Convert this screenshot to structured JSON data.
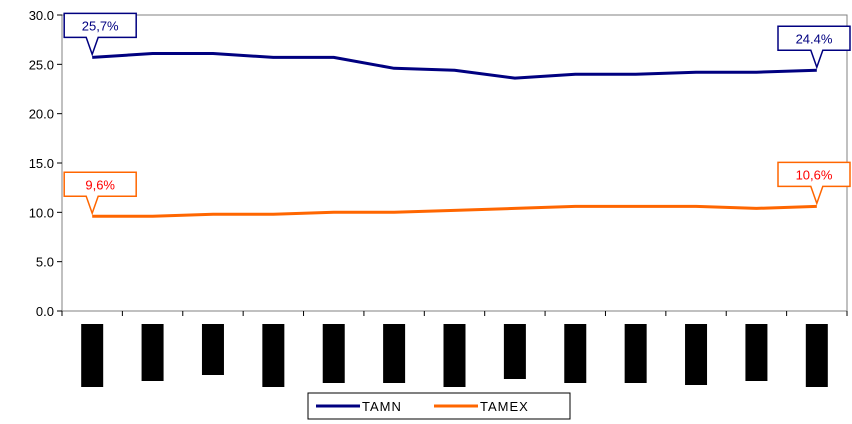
{
  "chart_data": {
    "type": "line",
    "title": "",
    "xlabel": "",
    "ylabel": "",
    "ylim": [
      0,
      30
    ],
    "yticks": [
      "0.0",
      "5.0",
      "10.0",
      "15.0",
      "20.0",
      "25.0",
      "30.0"
    ],
    "x_count": 13,
    "series": [
      {
        "name": "TAMN",
        "color": "#000080",
        "values": [
          25.7,
          26.1,
          26.1,
          25.7,
          25.7,
          24.6,
          24.4,
          23.6,
          24.0,
          24.0,
          24.2,
          24.2,
          24.4
        ]
      },
      {
        "name": "TAMEX",
        "color": "#FF6600",
        "values": [
          9.6,
          9.6,
          9.8,
          9.8,
          10.0,
          10.0,
          10.2,
          10.4,
          10.6,
          10.6,
          10.6,
          10.4,
          10.6
        ]
      }
    ],
    "annotations": [
      {
        "series": 0,
        "point": 0,
        "text": "25,7%",
        "color": "#000080",
        "text_color": "#000080"
      },
      {
        "series": 0,
        "point": 12,
        "text": "24.4%",
        "color": "#000080",
        "text_color": "#000080"
      },
      {
        "series": 1,
        "point": 0,
        "text": "9,6%",
        "color": "#FF6600",
        "text_color": "#FF0000"
      },
      {
        "series": 1,
        "point": 12,
        "text": "10,6%",
        "color": "#FF6600",
        "text_color": "#FF0000"
      }
    ],
    "legend": "bottom",
    "grid": false
  }
}
